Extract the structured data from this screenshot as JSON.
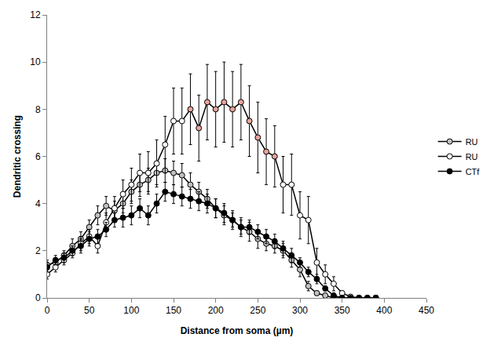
{
  "chart_data": {
    "type": "line",
    "x_label": "Distance from soma (µm)",
    "y_label": "Dendritic crossing",
    "x": [
      0,
      10,
      20,
      30,
      40,
      50,
      60,
      70,
      80,
      90,
      100,
      110,
      120,
      130,
      140,
      150,
      160,
      170,
      180,
      190,
      200,
      210,
      220,
      230,
      240,
      250,
      260,
      270,
      280,
      290,
      300,
      310,
      320,
      330,
      340,
      350,
      360,
      370,
      380,
      390
    ],
    "series": [
      {
        "name": "RU",
        "color": "#c0c0c0",
        "marker": "circle",
        "line_style": "solid",
        "values": [
          1.4,
          1.5,
          1.8,
          2.2,
          2.5,
          3.0,
          3.5,
          3.9,
          3.7,
          4.0,
          4.5,
          4.8,
          5.0,
          5.3,
          5.4,
          5.3,
          5.2,
          4.8,
          4.5,
          4.2,
          3.8,
          3.5,
          3.3,
          3.0,
          2.8,
          2.5,
          2.3,
          2.2,
          2.0,
          1.6,
          1.2,
          0.5,
          0.2,
          0.1,
          0,
          0,
          0,
          0,
          0,
          0
        ],
        "errors": [
          0.2,
          0.2,
          0.2,
          0.3,
          0.3,
          0.3,
          0.4,
          0.4,
          0.4,
          0.4,
          0.5,
          0.5,
          0.5,
          0.5,
          0.5,
          0.5,
          0.5,
          0.5,
          0.4,
          0.4,
          0.4,
          0.4,
          0.4,
          0.4,
          0.4,
          0.4,
          0.3,
          0.3,
          0.3,
          0.3,
          0.3,
          0.2,
          0.1,
          0.1,
          0,
          0,
          0,
          0,
          0,
          0
        ]
      },
      {
        "name": "RU",
        "color": "#ffffff",
        "marker": "circle",
        "line_style": "solid",
        "colors": [
          "#ffffff",
          "#ffffff",
          "#ffffff",
          "#ffffff",
          "#ffffff",
          "#ffffff",
          "#ffffff",
          "#ffffff",
          "#ffffff",
          "#ffffff",
          "#ffffff",
          "#ffffff",
          "#ffffff",
          "#ffffff",
          "#ffffff",
          "#ffffff",
          "#ffffff",
          "#e8a39a",
          "#e8a39a",
          "#e8a39a",
          "#e8a39a",
          "#e8a39a",
          "#e8a39a",
          "#e8a39a",
          "#e8a39a",
          "#e8a39a",
          "#e8a39a",
          "#e8a39a",
          "#ffffff",
          "#ffffff",
          "#ffffff",
          "#ffffff",
          "#ffffff",
          "#ffffff",
          "#ffffff",
          "#ffffff",
          "#ffffff",
          "#ffffff",
          "#ffffff",
          "#ffffff"
        ],
        "values": [
          1.0,
          1.3,
          1.6,
          1.9,
          2.3,
          2.6,
          2.2,
          3.2,
          3.8,
          4.4,
          4.8,
          5.3,
          5.3,
          5.7,
          6.5,
          7.5,
          7.5,
          8.0,
          7.2,
          8.3,
          8.0,
          8.3,
          8.0,
          8.3,
          7.5,
          6.8,
          6.2,
          6.0,
          4.8,
          4.8,
          3.5,
          3.3,
          1.5,
          1.0,
          0.6,
          0.2,
          0.05,
          0,
          0,
          0
        ],
        "errors": [
          0.2,
          0.2,
          0.2,
          0.2,
          0.3,
          0.3,
          0.3,
          0.4,
          0.5,
          0.6,
          0.7,
          0.8,
          0.9,
          1.0,
          1.2,
          1.4,
          1.4,
          1.5,
          1.4,
          1.6,
          1.6,
          1.7,
          1.6,
          1.6,
          1.5,
          1.5,
          1.4,
          1.3,
          1.2,
          1.3,
          1.0,
          1.0,
          0.6,
          0.4,
          0.3,
          0.1,
          0,
          0,
          0,
          0
        ]
      },
      {
        "name": "CTf",
        "color": "#000000",
        "marker": "circle",
        "line_style": "solid",
        "values": [
          1.3,
          1.6,
          1.7,
          2.0,
          2.2,
          2.5,
          2.6,
          2.9,
          3.3,
          3.4,
          3.5,
          3.8,
          3.5,
          4.0,
          4.5,
          4.4,
          4.3,
          4.2,
          4.1,
          4.0,
          3.8,
          3.6,
          3.3,
          3.0,
          3.0,
          2.8,
          2.6,
          2.4,
          2.1,
          1.8,
          1.5,
          1.1,
          0.8,
          0.4,
          0.1,
          0,
          0,
          0,
          0,
          0
        ],
        "errors": [
          0.2,
          0.2,
          0.2,
          0.2,
          0.3,
          0.3,
          0.3,
          0.3,
          0.3,
          0.4,
          0.4,
          0.4,
          0.4,
          0.4,
          0.4,
          0.4,
          0.4,
          0.4,
          0.4,
          0.4,
          0.4,
          0.4,
          0.3,
          0.3,
          0.3,
          0.3,
          0.3,
          0.3,
          0.3,
          0.3,
          0.2,
          0.2,
          0.2,
          0.1,
          0.1,
          0,
          0,
          0,
          0,
          0
        ]
      }
    ],
    "xlim": [
      0,
      450
    ],
    "xticks": [
      0,
      50,
      100,
      150,
      200,
      250,
      300,
      350,
      400,
      450
    ],
    "ylim": [
      0,
      12
    ],
    "yticks": [
      0,
      2,
      4,
      6,
      8,
      10,
      12
    ],
    "grid": false,
    "legend": "right"
  }
}
